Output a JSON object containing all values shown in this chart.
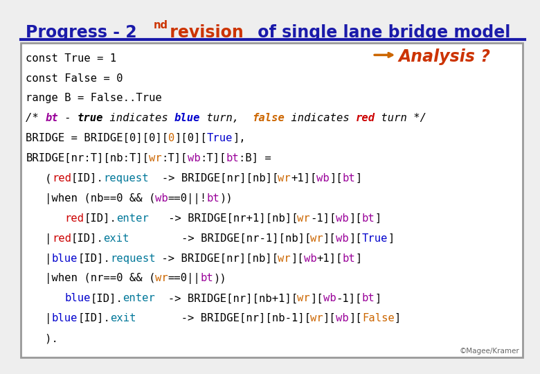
{
  "bg_color": "#eeeeee",
  "box_bg": "#ffffff",
  "box_border": "#888888",
  "footer": "©Magee/Kramer",
  "code_lines": [
    [
      {
        "text": "const True = 1",
        "color": "#000000",
        "weight": "normal",
        "style": "normal"
      }
    ],
    [
      {
        "text": "const False = 0",
        "color": "#000000",
        "weight": "normal",
        "style": "normal"
      }
    ],
    [
      {
        "text": "range B = False..True",
        "color": "#000000",
        "weight": "normal",
        "style": "normal"
      }
    ],
    [
      {
        "text": "/* ",
        "color": "#000000",
        "weight": "normal",
        "style": "italic"
      },
      {
        "text": "bt",
        "color": "#990099",
        "weight": "bold",
        "style": "italic"
      },
      {
        "text": " - ",
        "color": "#000000",
        "weight": "normal",
        "style": "italic"
      },
      {
        "text": "true",
        "color": "#000000",
        "weight": "bold",
        "style": "italic"
      },
      {
        "text": " indicates ",
        "color": "#000000",
        "weight": "normal",
        "style": "italic"
      },
      {
        "text": "blue",
        "color": "#0000cc",
        "weight": "bold",
        "style": "italic"
      },
      {
        "text": " turn,  ",
        "color": "#000000",
        "weight": "normal",
        "style": "italic"
      },
      {
        "text": "false",
        "color": "#cc6600",
        "weight": "bold",
        "style": "italic"
      },
      {
        "text": " indicates ",
        "color": "#000000",
        "weight": "normal",
        "style": "italic"
      },
      {
        "text": "red",
        "color": "#cc0000",
        "weight": "bold",
        "style": "italic"
      },
      {
        "text": " turn */",
        "color": "#000000",
        "weight": "normal",
        "style": "italic"
      }
    ],
    [
      {
        "text": "BRIDGE = BRIDGE[0][0][",
        "color": "#000000",
        "weight": "normal",
        "style": "normal"
      },
      {
        "text": "0",
        "color": "#cc6600",
        "weight": "normal",
        "style": "normal"
      },
      {
        "text": "][0][",
        "color": "#000000",
        "weight": "normal",
        "style": "normal"
      },
      {
        "text": "True",
        "color": "#0000cc",
        "weight": "normal",
        "style": "normal"
      },
      {
        "text": "],",
        "color": "#000000",
        "weight": "normal",
        "style": "normal"
      }
    ],
    [
      {
        "text": "BRIDGE[nr:T][nb:T][",
        "color": "#000000",
        "weight": "normal",
        "style": "normal"
      },
      {
        "text": "wr",
        "color": "#cc6600",
        "weight": "normal",
        "style": "normal"
      },
      {
        "text": ":T][",
        "color": "#000000",
        "weight": "normal",
        "style": "normal"
      },
      {
        "text": "wb",
        "color": "#990099",
        "weight": "normal",
        "style": "normal"
      },
      {
        "text": ":T][",
        "color": "#000000",
        "weight": "normal",
        "style": "normal"
      },
      {
        "text": "bt",
        "color": "#990099",
        "weight": "normal",
        "style": "normal"
      },
      {
        "text": ":B] =",
        "color": "#000000",
        "weight": "normal",
        "style": "normal"
      }
    ],
    [
      {
        "text": "   (",
        "color": "#000000",
        "weight": "normal",
        "style": "normal"
      },
      {
        "text": "red",
        "color": "#cc0000",
        "weight": "normal",
        "style": "normal"
      },
      {
        "text": "[ID].",
        "color": "#000000",
        "weight": "normal",
        "style": "normal"
      },
      {
        "text": "request",
        "color": "#007799",
        "weight": "normal",
        "style": "normal"
      },
      {
        "text": "  -> BRIDGE[nr][nb][",
        "color": "#000000",
        "weight": "normal",
        "style": "normal"
      },
      {
        "text": "wr",
        "color": "#cc6600",
        "weight": "normal",
        "style": "normal"
      },
      {
        "text": "+1][",
        "color": "#000000",
        "weight": "normal",
        "style": "normal"
      },
      {
        "text": "wb",
        "color": "#990099",
        "weight": "normal",
        "style": "normal"
      },
      {
        "text": "][",
        "color": "#000000",
        "weight": "normal",
        "style": "normal"
      },
      {
        "text": "bt",
        "color": "#990099",
        "weight": "normal",
        "style": "normal"
      },
      {
        "text": "]",
        "color": "#000000",
        "weight": "normal",
        "style": "normal"
      }
    ],
    [
      {
        "text": "   |when (nb==0 && (",
        "color": "#000000",
        "weight": "normal",
        "style": "normal"
      },
      {
        "text": "wb",
        "color": "#990099",
        "weight": "normal",
        "style": "normal"
      },
      {
        "text": "==0||!",
        "color": "#000000",
        "weight": "normal",
        "style": "normal"
      },
      {
        "text": "bt",
        "color": "#990099",
        "weight": "normal",
        "style": "normal"
      },
      {
        "text": "))",
        "color": "#000000",
        "weight": "normal",
        "style": "normal"
      }
    ],
    [
      {
        "text": "      ",
        "color": "#000000",
        "weight": "normal",
        "style": "normal"
      },
      {
        "text": "red",
        "color": "#cc0000",
        "weight": "normal",
        "style": "normal"
      },
      {
        "text": "[ID].",
        "color": "#000000",
        "weight": "normal",
        "style": "normal"
      },
      {
        "text": "enter",
        "color": "#007799",
        "weight": "normal",
        "style": "normal"
      },
      {
        "text": "   -> BRIDGE[nr+1][nb][",
        "color": "#000000",
        "weight": "normal",
        "style": "normal"
      },
      {
        "text": "wr",
        "color": "#cc6600",
        "weight": "normal",
        "style": "normal"
      },
      {
        "text": "-1][",
        "color": "#000000",
        "weight": "normal",
        "style": "normal"
      },
      {
        "text": "wb",
        "color": "#990099",
        "weight": "normal",
        "style": "normal"
      },
      {
        "text": "][",
        "color": "#000000",
        "weight": "normal",
        "style": "normal"
      },
      {
        "text": "bt",
        "color": "#990099",
        "weight": "normal",
        "style": "normal"
      },
      {
        "text": "]",
        "color": "#000000",
        "weight": "normal",
        "style": "normal"
      }
    ],
    [
      {
        "text": "   |",
        "color": "#000000",
        "weight": "normal",
        "style": "normal"
      },
      {
        "text": "red",
        "color": "#cc0000",
        "weight": "normal",
        "style": "normal"
      },
      {
        "text": "[ID].",
        "color": "#000000",
        "weight": "normal",
        "style": "normal"
      },
      {
        "text": "exit",
        "color": "#007799",
        "weight": "normal",
        "style": "normal"
      },
      {
        "text": "        -> BRIDGE[nr-1][nb][",
        "color": "#000000",
        "weight": "normal",
        "style": "normal"
      },
      {
        "text": "wr",
        "color": "#cc6600",
        "weight": "normal",
        "style": "normal"
      },
      {
        "text": "][",
        "color": "#000000",
        "weight": "normal",
        "style": "normal"
      },
      {
        "text": "wb",
        "color": "#990099",
        "weight": "normal",
        "style": "normal"
      },
      {
        "text": "][",
        "color": "#000000",
        "weight": "normal",
        "style": "normal"
      },
      {
        "text": "True",
        "color": "#0000cc",
        "weight": "normal",
        "style": "normal"
      },
      {
        "text": "]",
        "color": "#000000",
        "weight": "normal",
        "style": "normal"
      }
    ],
    [
      {
        "text": "   |",
        "color": "#000000",
        "weight": "normal",
        "style": "normal"
      },
      {
        "text": "blue",
        "color": "#0000cc",
        "weight": "normal",
        "style": "normal"
      },
      {
        "text": "[ID].",
        "color": "#000000",
        "weight": "normal",
        "style": "normal"
      },
      {
        "text": "request",
        "color": "#007799",
        "weight": "normal",
        "style": "normal"
      },
      {
        "text": " -> BRIDGE[nr][nb][",
        "color": "#000000",
        "weight": "normal",
        "style": "normal"
      },
      {
        "text": "wr",
        "color": "#cc6600",
        "weight": "normal",
        "style": "normal"
      },
      {
        "text": "][",
        "color": "#000000",
        "weight": "normal",
        "style": "normal"
      },
      {
        "text": "wb",
        "color": "#990099",
        "weight": "normal",
        "style": "normal"
      },
      {
        "text": "+1][",
        "color": "#000000",
        "weight": "normal",
        "style": "normal"
      },
      {
        "text": "bt",
        "color": "#990099",
        "weight": "normal",
        "style": "normal"
      },
      {
        "text": "]",
        "color": "#000000",
        "weight": "normal",
        "style": "normal"
      }
    ],
    [
      {
        "text": "   |when (nr==0 && (",
        "color": "#000000",
        "weight": "normal",
        "style": "normal"
      },
      {
        "text": "wr",
        "color": "#cc6600",
        "weight": "normal",
        "style": "normal"
      },
      {
        "text": "==0||",
        "color": "#000000",
        "weight": "normal",
        "style": "normal"
      },
      {
        "text": "bt",
        "color": "#990099",
        "weight": "normal",
        "style": "normal"
      },
      {
        "text": "))",
        "color": "#000000",
        "weight": "normal",
        "style": "normal"
      }
    ],
    [
      {
        "text": "      ",
        "color": "#000000",
        "weight": "normal",
        "style": "normal"
      },
      {
        "text": "blue",
        "color": "#0000cc",
        "weight": "normal",
        "style": "normal"
      },
      {
        "text": "[ID].",
        "color": "#000000",
        "weight": "normal",
        "style": "normal"
      },
      {
        "text": "enter",
        "color": "#007799",
        "weight": "normal",
        "style": "normal"
      },
      {
        "text": "  -> BRIDGE[nr][nb+1][",
        "color": "#000000",
        "weight": "normal",
        "style": "normal"
      },
      {
        "text": "wr",
        "color": "#cc6600",
        "weight": "normal",
        "style": "normal"
      },
      {
        "text": "][",
        "color": "#000000",
        "weight": "normal",
        "style": "normal"
      },
      {
        "text": "wb",
        "color": "#990099",
        "weight": "normal",
        "style": "normal"
      },
      {
        "text": "-1][",
        "color": "#000000",
        "weight": "normal",
        "style": "normal"
      },
      {
        "text": "bt",
        "color": "#990099",
        "weight": "normal",
        "style": "normal"
      },
      {
        "text": "]",
        "color": "#000000",
        "weight": "normal",
        "style": "normal"
      }
    ],
    [
      {
        "text": "   |",
        "color": "#000000",
        "weight": "normal",
        "style": "normal"
      },
      {
        "text": "blue",
        "color": "#0000cc",
        "weight": "normal",
        "style": "normal"
      },
      {
        "text": "[ID].",
        "color": "#000000",
        "weight": "normal",
        "style": "normal"
      },
      {
        "text": "exit",
        "color": "#007799",
        "weight": "normal",
        "style": "normal"
      },
      {
        "text": "       -> BRIDGE[nr][nb-1][",
        "color": "#000000",
        "weight": "normal",
        "style": "normal"
      },
      {
        "text": "wr",
        "color": "#cc6600",
        "weight": "normal",
        "style": "normal"
      },
      {
        "text": "][",
        "color": "#000000",
        "weight": "normal",
        "style": "normal"
      },
      {
        "text": "wb",
        "color": "#990099",
        "weight": "normal",
        "style": "normal"
      },
      {
        "text": "][",
        "color": "#000000",
        "weight": "normal",
        "style": "normal"
      },
      {
        "text": "False",
        "color": "#cc6600",
        "weight": "normal",
        "style": "normal"
      },
      {
        "text": "]",
        "color": "#000000",
        "weight": "normal",
        "style": "normal"
      }
    ],
    [
      {
        "text": "   ).",
        "color": "#000000",
        "weight": "normal",
        "style": "normal"
      }
    ]
  ]
}
